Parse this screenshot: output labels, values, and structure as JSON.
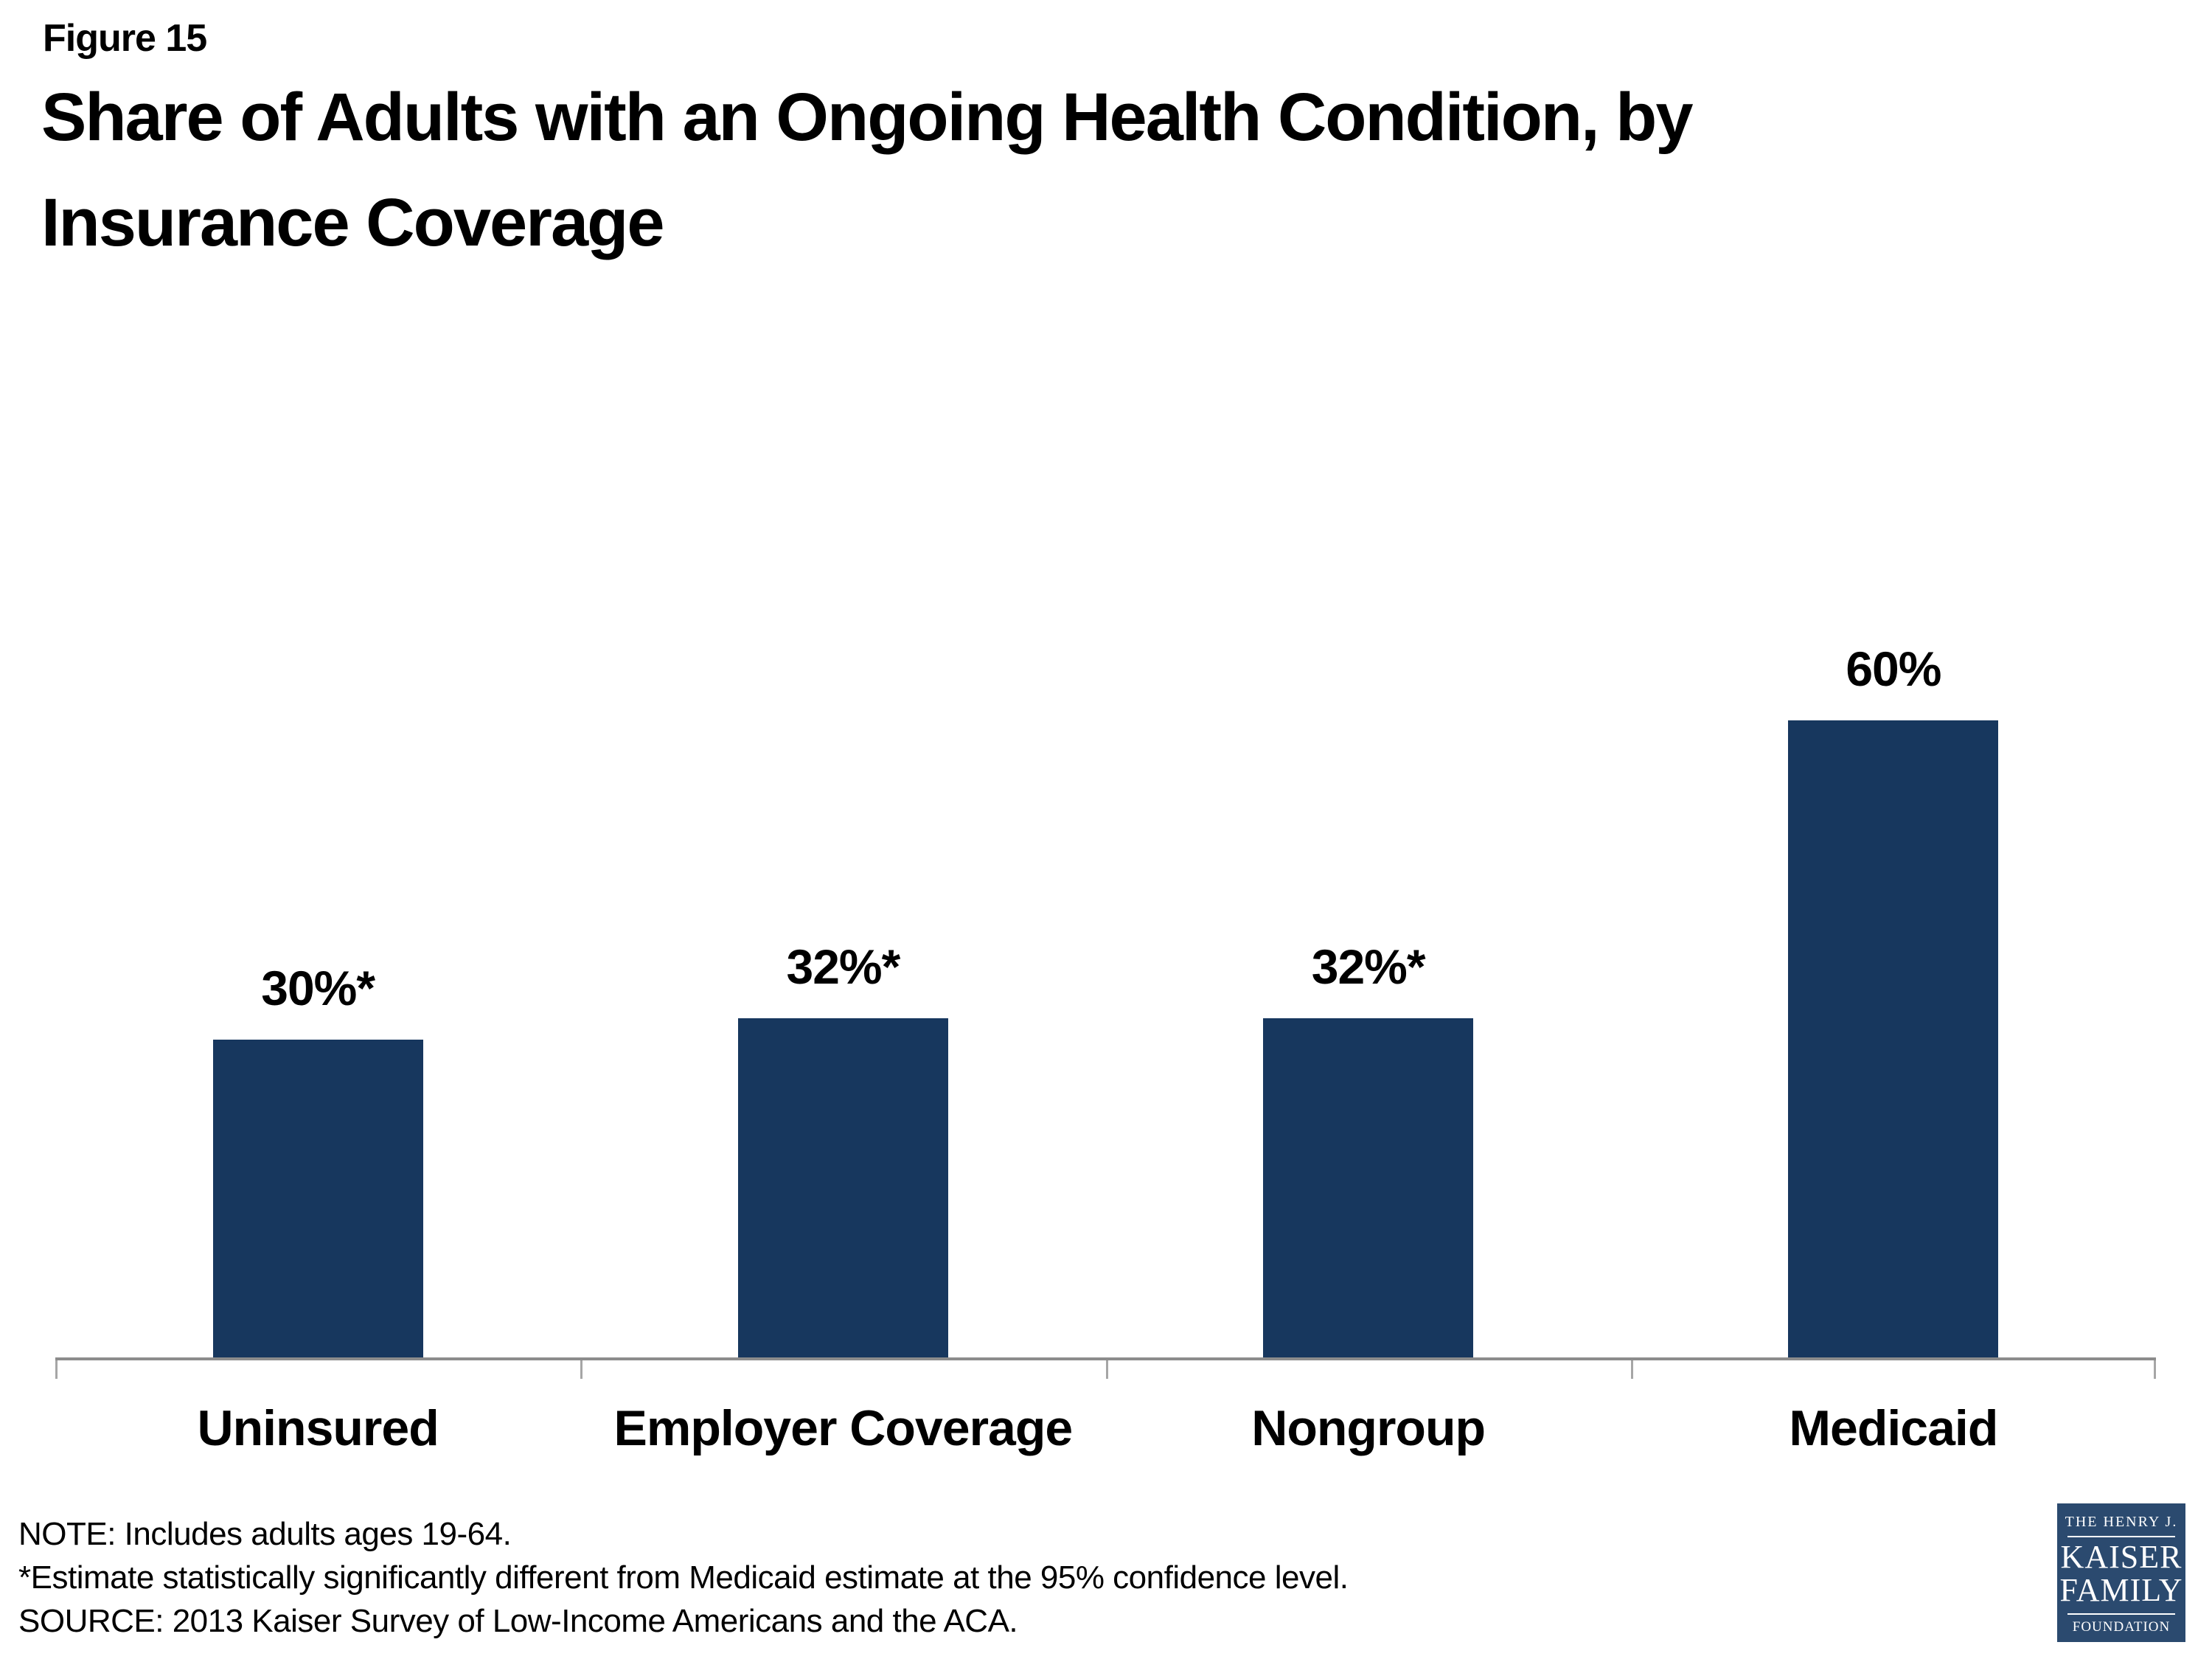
{
  "header": {
    "figure_label": "Figure 15",
    "title_line1": "Share of Adults with an Ongoing Health Condition, by",
    "title_line2": "Insurance Coverage"
  },
  "chart_data": {
    "type": "bar",
    "title": "Share of Adults with an Ongoing Health Condition, by Insurance Coverage",
    "categories": [
      "Uninsured",
      "Employer Coverage",
      "Nongroup",
      "Medicaid"
    ],
    "values": [
      30,
      32,
      32,
      60
    ],
    "value_labels": [
      "30%*",
      "32%*",
      "32%*",
      "60%"
    ],
    "xlabel": "",
    "ylabel": "",
    "ylim": [
      0,
      70
    ],
    "grid": false,
    "legend": "none",
    "bar_color": "#17375E",
    "axis_line_color": "#8C8C8C",
    "tick_color": "#A6A6A6"
  },
  "notes": {
    "note": "NOTE: Includes adults ages 19-64.",
    "estimate": "*Estimate statistically significantly different from Medicaid estimate at the 95% confidence level.",
    "source": "SOURCE: 2013 Kaiser Survey of Low-Income Americans and the ACA."
  },
  "logo": {
    "line1": "THE HENRY J.",
    "line2": "KAISER",
    "line3": "FAMILY",
    "line4": "FOUNDATION",
    "bg_color": "#2B4A6F"
  }
}
